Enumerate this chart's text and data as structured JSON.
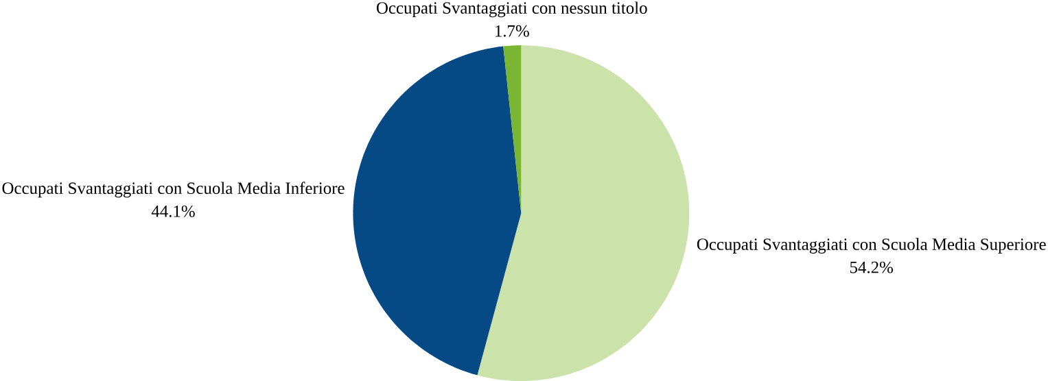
{
  "chart_data": {
    "type": "pie",
    "categories": [
      "Occupati Svantaggiati con Scuola Media Superiore",
      "Occupati Svantaggiati con Scuola Media Inferiore",
      "Occupati Svantaggiati con nessun titolo"
    ],
    "values": [
      54.2,
      44.1,
      1.7
    ],
    "value_labels": [
      "54.2%",
      "44.1%",
      "1.7%"
    ],
    "colors": [
      "#cbe2aa",
      "#054a85",
      "#7ab632"
    ]
  }
}
